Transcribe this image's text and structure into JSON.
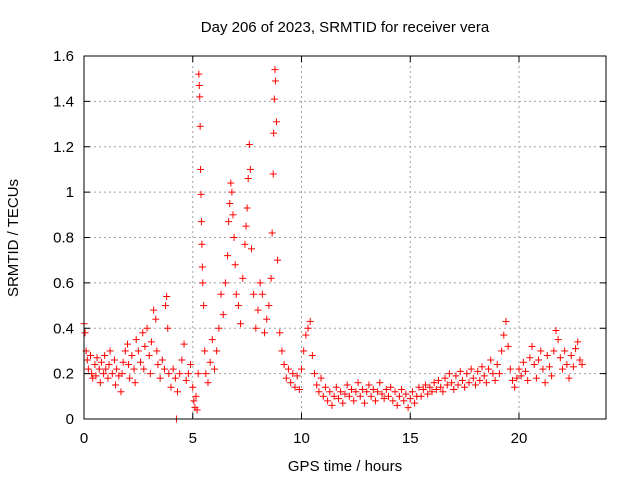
{
  "chart_data": {
    "type": "scatter",
    "title": "Day 206 of 2023, SRMTID for receiver vera",
    "xlabel": "GPS time / hours",
    "ylabel": "SRMTID / TECUs",
    "xlim": [
      0,
      24
    ],
    "ylim": [
      0,
      1.6
    ],
    "grid": true,
    "x_ticks": [
      0,
      5,
      10,
      15,
      20
    ],
    "x_tick_labels": [
      "0",
      "5",
      "10",
      "15",
      "20"
    ],
    "y_ticks": [
      0,
      0.2,
      0.4,
      0.6,
      0.8,
      1.0,
      1.2,
      1.4,
      1.6
    ],
    "y_tick_labels": [
      "0",
      "0.2",
      "0.4",
      "0.6",
      "0.8",
      "1",
      "1.2",
      "1.4",
      "1.6"
    ],
    "marker": "+",
    "marker_color": "#ff0000",
    "series": [
      {
        "name": "SRMTID",
        "points": [
          [
            0.0,
            0.42
          ],
          [
            0.05,
            0.38
          ],
          [
            0.1,
            0.3
          ],
          [
            0.15,
            0.26
          ],
          [
            0.2,
            0.22
          ],
          [
            0.3,
            0.28
          ],
          [
            0.35,
            0.2
          ],
          [
            0.4,
            0.18
          ],
          [
            0.5,
            0.24
          ],
          [
            0.55,
            0.19
          ],
          [
            0.6,
            0.27
          ],
          [
            0.7,
            0.22
          ],
          [
            0.75,
            0.16
          ],
          [
            0.8,
            0.25
          ],
          [
            0.9,
            0.2
          ],
          [
            0.95,
            0.28
          ],
          [
            1.0,
            0.22
          ],
          [
            1.1,
            0.18
          ],
          [
            1.15,
            0.24
          ],
          [
            1.2,
            0.3
          ],
          [
            1.3,
            0.2
          ],
          [
            1.4,
            0.26
          ],
          [
            1.45,
            0.15
          ],
          [
            1.5,
            0.22
          ],
          [
            1.6,
            0.19
          ],
          [
            1.7,
            0.12
          ],
          [
            1.75,
            0.2
          ],
          [
            1.8,
            0.25
          ],
          [
            1.9,
            0.3
          ],
          [
            2.0,
            0.33
          ],
          [
            2.05,
            0.24
          ],
          [
            2.1,
            0.18
          ],
          [
            2.2,
            0.28
          ],
          [
            2.3,
            0.22
          ],
          [
            2.35,
            0.16
          ],
          [
            2.4,
            0.35
          ],
          [
            2.5,
            0.3
          ],
          [
            2.6,
            0.25
          ],
          [
            2.7,
            0.38
          ],
          [
            2.75,
            0.22
          ],
          [
            2.8,
            0.32
          ],
          [
            2.9,
            0.4
          ],
          [
            3.0,
            0.28
          ],
          [
            3.05,
            0.2
          ],
          [
            3.1,
            0.34
          ],
          [
            3.2,
            0.48
          ],
          [
            3.3,
            0.44
          ],
          [
            3.35,
            0.3
          ],
          [
            3.4,
            0.24
          ],
          [
            3.5,
            0.18
          ],
          [
            3.6,
            0.26
          ],
          [
            3.7,
            0.22
          ],
          [
            3.75,
            0.5
          ],
          [
            3.8,
            0.54
          ],
          [
            3.85,
            0.4
          ],
          [
            3.9,
            0.2
          ],
          [
            4.0,
            0.14
          ],
          [
            4.1,
            0.22
          ],
          [
            4.2,
            0.18
          ],
          [
            4.25,
            0.0
          ],
          [
            4.3,
            0.12
          ],
          [
            4.4,
            0.2
          ],
          [
            4.5,
            0.26
          ],
          [
            4.6,
            0.33
          ],
          [
            4.7,
            0.17
          ],
          [
            4.8,
            0.2
          ],
          [
            4.9,
            0.24
          ],
          [
            5.0,
            0.14
          ],
          [
            5.05,
            0.08
          ],
          [
            5.1,
            0.05
          ],
          [
            5.15,
            0.1
          ],
          [
            5.2,
            0.04
          ],
          [
            5.25,
            0.2
          ],
          [
            5.28,
            1.52
          ],
          [
            5.3,
            1.47
          ],
          [
            5.32,
            1.42
          ],
          [
            5.34,
            1.29
          ],
          [
            5.36,
            1.1
          ],
          [
            5.38,
            0.99
          ],
          [
            5.4,
            0.87
          ],
          [
            5.42,
            0.77
          ],
          [
            5.44,
            0.67
          ],
          [
            5.46,
            0.6
          ],
          [
            5.5,
            0.5
          ],
          [
            5.55,
            0.3
          ],
          [
            5.6,
            0.2
          ],
          [
            5.7,
            0.16
          ],
          [
            5.8,
            0.25
          ],
          [
            5.9,
            0.35
          ],
          [
            6.0,
            0.22
          ],
          [
            6.1,
            0.3
          ],
          [
            6.2,
            0.4
          ],
          [
            6.3,
            0.55
          ],
          [
            6.4,
            0.46
          ],
          [
            6.5,
            0.6
          ],
          [
            6.6,
            0.72
          ],
          [
            6.65,
            0.87
          ],
          [
            6.7,
            0.95
          ],
          [
            6.75,
            1.04
          ],
          [
            6.8,
            1.0
          ],
          [
            6.85,
            0.9
          ],
          [
            6.9,
            0.8
          ],
          [
            6.95,
            0.68
          ],
          [
            7.0,
            0.55
          ],
          [
            7.1,
            0.5
          ],
          [
            7.2,
            0.42
          ],
          [
            7.3,
            0.62
          ],
          [
            7.4,
            0.77
          ],
          [
            7.45,
            0.85
          ],
          [
            7.5,
            0.93
          ],
          [
            7.55,
            1.06
          ],
          [
            7.6,
            1.21
          ],
          [
            7.65,
            1.1
          ],
          [
            7.7,
            0.75
          ],
          [
            7.8,
            0.55
          ],
          [
            7.9,
            0.4
          ],
          [
            8.0,
            0.48
          ],
          [
            8.1,
            0.6
          ],
          [
            8.2,
            0.55
          ],
          [
            8.3,
            0.38
          ],
          [
            8.4,
            0.44
          ],
          [
            8.5,
            0.5
          ],
          [
            8.6,
            0.62
          ],
          [
            8.65,
            0.82
          ],
          [
            8.7,
            1.08
          ],
          [
            8.72,
            1.26
          ],
          [
            8.75,
            1.41
          ],
          [
            8.78,
            1.54
          ],
          [
            8.8,
            1.49
          ],
          [
            8.85,
            1.31
          ],
          [
            8.9,
            0.7
          ],
          [
            9.0,
            0.38
          ],
          [
            9.1,
            0.3
          ],
          [
            9.2,
            0.24
          ],
          [
            9.3,
            0.18
          ],
          [
            9.4,
            0.22
          ],
          [
            9.5,
            0.16
          ],
          [
            9.6,
            0.2
          ],
          [
            9.7,
            0.14
          ],
          [
            9.8,
            0.19
          ],
          [
            9.9,
            0.13
          ],
          [
            10.0,
            0.22
          ],
          [
            10.1,
            0.3
          ],
          [
            10.2,
            0.37
          ],
          [
            10.3,
            0.4
          ],
          [
            10.4,
            0.43
          ],
          [
            10.5,
            0.28
          ],
          [
            10.6,
            0.2
          ],
          [
            10.7,
            0.15
          ],
          [
            10.8,
            0.12
          ],
          [
            10.9,
            0.18
          ],
          [
            11.0,
            0.1
          ],
          [
            11.1,
            0.14
          ],
          [
            11.2,
            0.08
          ],
          [
            11.3,
            0.12
          ],
          [
            11.4,
            0.06
          ],
          [
            11.5,
            0.1
          ],
          [
            11.6,
            0.14
          ],
          [
            11.7,
            0.09
          ],
          [
            11.8,
            0.12
          ],
          [
            11.9,
            0.07
          ],
          [
            12.0,
            0.11
          ],
          [
            12.1,
            0.15
          ],
          [
            12.2,
            0.1
          ],
          [
            12.3,
            0.13
          ],
          [
            12.4,
            0.08
          ],
          [
            12.5,
            0.12
          ],
          [
            12.6,
            0.16
          ],
          [
            12.7,
            0.1
          ],
          [
            12.8,
            0.13
          ],
          [
            12.9,
            0.07
          ],
          [
            13.0,
            0.12
          ],
          [
            13.1,
            0.15
          ],
          [
            13.2,
            0.1
          ],
          [
            13.3,
            0.13
          ],
          [
            13.4,
            0.08
          ],
          [
            13.5,
            0.12
          ],
          [
            13.6,
            0.16
          ],
          [
            13.7,
            0.11
          ],
          [
            13.8,
            0.09
          ],
          [
            13.9,
            0.13
          ],
          [
            14.0,
            0.1
          ],
          [
            14.1,
            0.14
          ],
          [
            14.2,
            0.08
          ],
          [
            14.3,
            0.12
          ],
          [
            14.4,
            0.06
          ],
          [
            14.5,
            0.1
          ],
          [
            14.6,
            0.13
          ],
          [
            14.7,
            0.08
          ],
          [
            14.8,
            0.11
          ],
          [
            14.9,
            0.05
          ],
          [
            15.0,
            0.09
          ],
          [
            15.1,
            0.12
          ],
          [
            15.2,
            0.07
          ],
          [
            15.3,
            0.1
          ],
          [
            15.4,
            0.14
          ],
          [
            15.5,
            0.1
          ],
          [
            15.6,
            0.13
          ],
          [
            15.7,
            0.15
          ],
          [
            15.8,
            0.11
          ],
          [
            15.9,
            0.14
          ],
          [
            16.0,
            0.12
          ],
          [
            16.1,
            0.16
          ],
          [
            16.2,
            0.13
          ],
          [
            16.3,
            0.17
          ],
          [
            16.4,
            0.14
          ],
          [
            16.5,
            0.12
          ],
          [
            16.6,
            0.18
          ],
          [
            16.7,
            0.15
          ],
          [
            16.8,
            0.2
          ],
          [
            16.9,
            0.16
          ],
          [
            17.0,
            0.13
          ],
          [
            17.1,
            0.19
          ],
          [
            17.2,
            0.15
          ],
          [
            17.3,
            0.21
          ],
          [
            17.4,
            0.17
          ],
          [
            17.5,
            0.14
          ],
          [
            17.6,
            0.2
          ],
          [
            17.7,
            0.16
          ],
          [
            17.8,
            0.22
          ],
          [
            17.9,
            0.18
          ],
          [
            18.0,
            0.15
          ],
          [
            18.1,
            0.21
          ],
          [
            18.2,
            0.17
          ],
          [
            18.3,
            0.23
          ],
          [
            18.4,
            0.19
          ],
          [
            18.5,
            0.16
          ],
          [
            18.6,
            0.22
          ],
          [
            18.7,
            0.26
          ],
          [
            18.8,
            0.2
          ],
          [
            18.9,
            0.17
          ],
          [
            19.0,
            0.24
          ],
          [
            19.1,
            0.2
          ],
          [
            19.2,
            0.3
          ],
          [
            19.3,
            0.37
          ],
          [
            19.4,
            0.43
          ],
          [
            19.5,
            0.32
          ],
          [
            19.6,
            0.22
          ],
          [
            19.7,
            0.17
          ],
          [
            19.8,
            0.14
          ],
          [
            19.9,
            0.18
          ],
          [
            20.0,
            0.22
          ],
          [
            20.1,
            0.19
          ],
          [
            20.2,
            0.25
          ],
          [
            20.3,
            0.21
          ],
          [
            20.4,
            0.17
          ],
          [
            20.5,
            0.27
          ],
          [
            20.6,
            0.32
          ],
          [
            20.7,
            0.24
          ],
          [
            20.8,
            0.18
          ],
          [
            20.9,
            0.26
          ],
          [
            21.0,
            0.3
          ],
          [
            21.1,
            0.22
          ],
          [
            21.2,
            0.16
          ],
          [
            21.3,
            0.28
          ],
          [
            21.4,
            0.23
          ],
          [
            21.5,
            0.19
          ],
          [
            21.6,
            0.3
          ],
          [
            21.7,
            0.39
          ],
          [
            21.8,
            0.35
          ],
          [
            21.9,
            0.27
          ],
          [
            22.0,
            0.22
          ],
          [
            22.1,
            0.3
          ],
          [
            22.2,
            0.24
          ],
          [
            22.3,
            0.18
          ],
          [
            22.4,
            0.28
          ],
          [
            22.5,
            0.23
          ],
          [
            22.6,
            0.31
          ],
          [
            22.7,
            0.34
          ],
          [
            22.8,
            0.26
          ],
          [
            22.9,
            0.24
          ]
        ]
      }
    ]
  }
}
